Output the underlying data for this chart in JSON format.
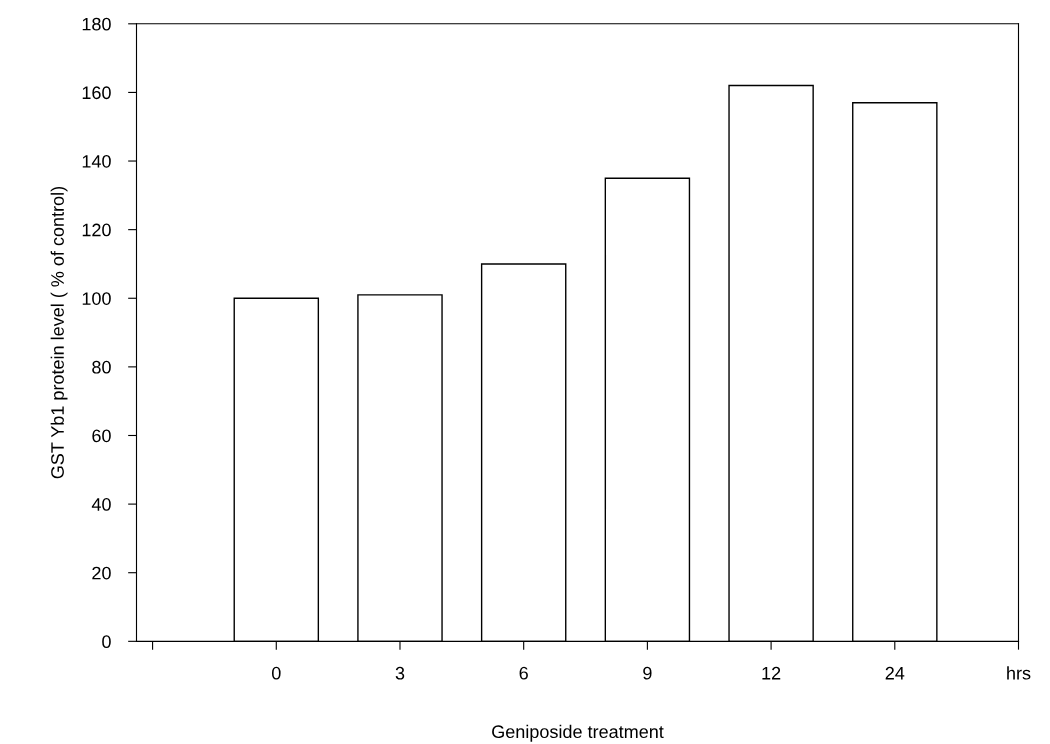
{
  "chart_data": {
    "type": "bar",
    "xlabel": "Geniposide treatment",
    "ylabel": "GST Yb1 protein level ( % of control)",
    "categories": [
      null,
      "0",
      "3",
      "6",
      "9",
      "12",
      "24",
      "hrs"
    ],
    "values": [
      null,
      100,
      101,
      110,
      135,
      162,
      157,
      null
    ],
    "color": "#ffffff",
    "ylim": [
      0,
      180
    ],
    "yticks": [
      0,
      20,
      40,
      60,
      80,
      100,
      120,
      140,
      160,
      180
    ],
    "grid": false
  }
}
